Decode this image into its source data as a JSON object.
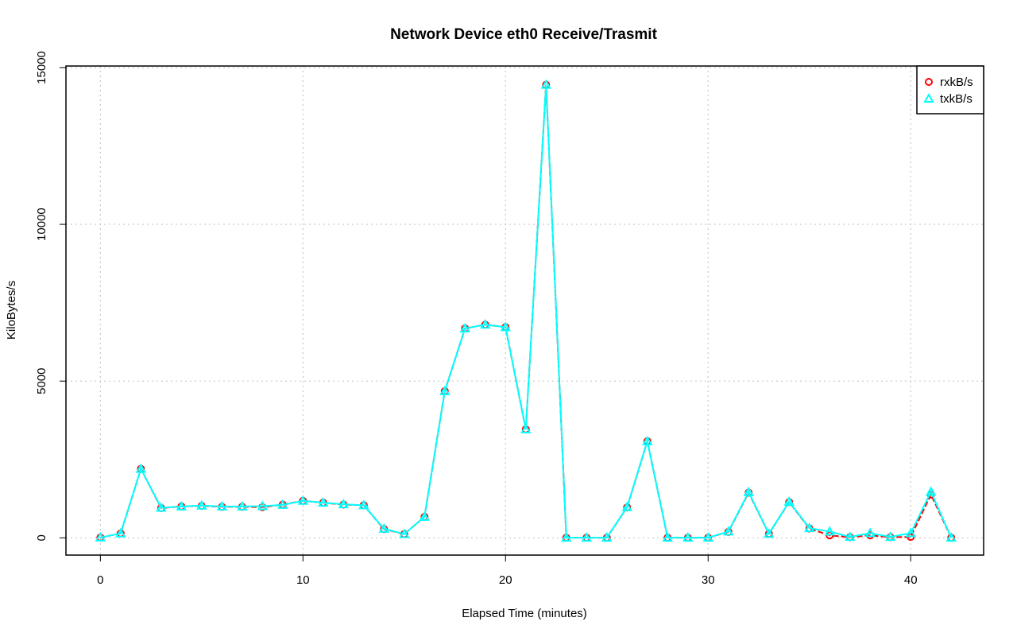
{
  "chart_data": {
    "type": "line",
    "title": "Network Device eth0 Receive/Trasmit",
    "xlabel": "Elapsed Time (minutes)",
    "ylabel": "KiloBytes/s",
    "xlim": [
      -1.7,
      43.6
    ],
    "ylim": [
      -550,
      15050
    ],
    "xticks": [
      0,
      10,
      20,
      30,
      40
    ],
    "yticks": [
      0,
      5000,
      10000,
      15000
    ],
    "grid": true,
    "legend_position": "top-right",
    "x": [
      0,
      1,
      2,
      3,
      4,
      5,
      6,
      7,
      8,
      9,
      10,
      11,
      12,
      13,
      14,
      15,
      16,
      17,
      18,
      19,
      20,
      21,
      22,
      23,
      24,
      25,
      26,
      27,
      28,
      29,
      30,
      31,
      32,
      33,
      34,
      35,
      36,
      37,
      38,
      39,
      40,
      41,
      42
    ],
    "series": [
      {
        "name": "rxkB/s",
        "color": "#ff0000",
        "marker": "circle",
        "line": "dashed",
        "values": [
          10,
          140,
          2200,
          950,
          1000,
          1020,
          990,
          990,
          980,
          1060,
          1180,
          1120,
          1060,
          1040,
          280,
          120,
          670,
          4680,
          6680,
          6800,
          6720,
          3460,
          14450,
          5,
          5,
          5,
          970,
          3080,
          5,
          5,
          5,
          190,
          1440,
          130,
          1140,
          300,
          80,
          20,
          80,
          20,
          30,
          1380,
          5
        ]
      },
      {
        "name": "txkB/s",
        "color": "#00ffff",
        "marker": "triangle",
        "line": "solid",
        "values": [
          10,
          140,
          2200,
          960,
          1000,
          1030,
          1000,
          1000,
          1010,
          1050,
          1180,
          1120,
          1070,
          1040,
          290,
          120,
          670,
          4680,
          6680,
          6800,
          6720,
          3460,
          14450,
          5,
          5,
          5,
          980,
          3080,
          5,
          5,
          5,
          200,
          1460,
          130,
          1150,
          310,
          200,
          30,
          150,
          30,
          150,
          1470,
          5
        ]
      }
    ]
  }
}
